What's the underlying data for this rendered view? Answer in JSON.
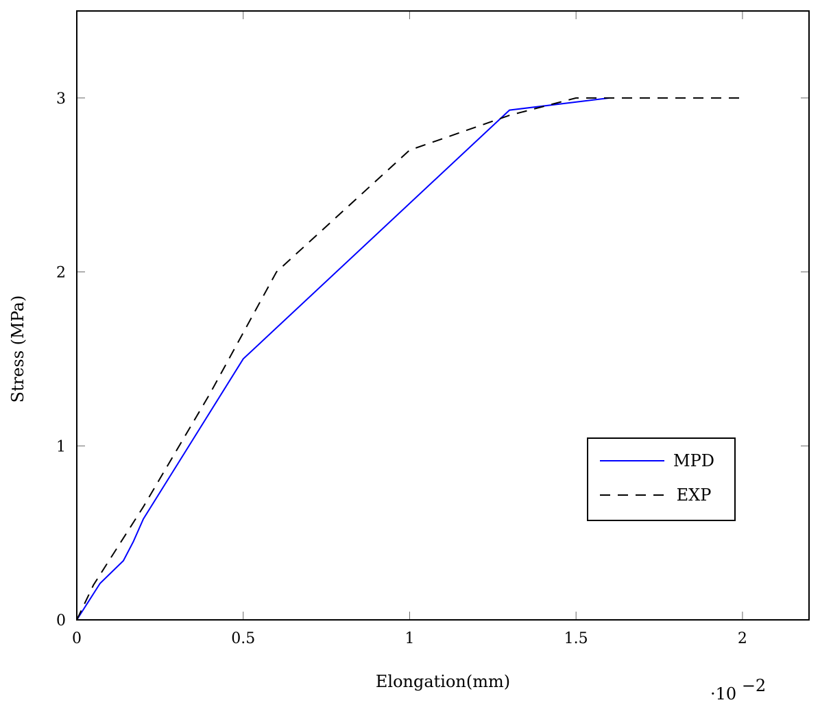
{
  "chart_data": {
    "type": "line",
    "xlabel": "Elongation(mm)",
    "ylabel": "Stress (MPa)",
    "x_scale_note": "·10",
    "x_scale_exponent": "−2",
    "xlim": [
      0,
      2.2
    ],
    "ylim": [
      0,
      3.5
    ],
    "x_ticks": [
      0,
      0.5,
      1,
      1.5,
      2
    ],
    "x_tick_labels": [
      "0",
      "0.5",
      "1",
      "1.5",
      "2"
    ],
    "y_ticks": [
      0,
      1,
      2,
      3
    ],
    "y_tick_labels": [
      "0",
      "1",
      "2",
      "3"
    ],
    "grid": false,
    "legend_position": "lower-right",
    "series": [
      {
        "name": "MPD",
        "color": "#0000ff",
        "dash": "solid",
        "points": [
          [
            0,
            0
          ],
          [
            0.07,
            0.21
          ],
          [
            0.14,
            0.34
          ],
          [
            0.17,
            0.45
          ],
          [
            0.2,
            0.58
          ],
          [
            0.5,
            1.5
          ],
          [
            1.3,
            2.93
          ],
          [
            1.6,
            3.0
          ]
        ]
      },
      {
        "name": "EXP",
        "color": "#000000",
        "dash": "dashed",
        "points": [
          [
            0,
            0
          ],
          [
            0.05,
            0.2
          ],
          [
            0.2,
            0.65
          ],
          [
            0.4,
            1.3
          ],
          [
            0.6,
            2.0
          ],
          [
            1.0,
            2.7
          ],
          [
            1.3,
            2.9
          ],
          [
            1.5,
            3.0
          ],
          [
            2.0,
            3.0
          ]
        ]
      }
    ]
  }
}
